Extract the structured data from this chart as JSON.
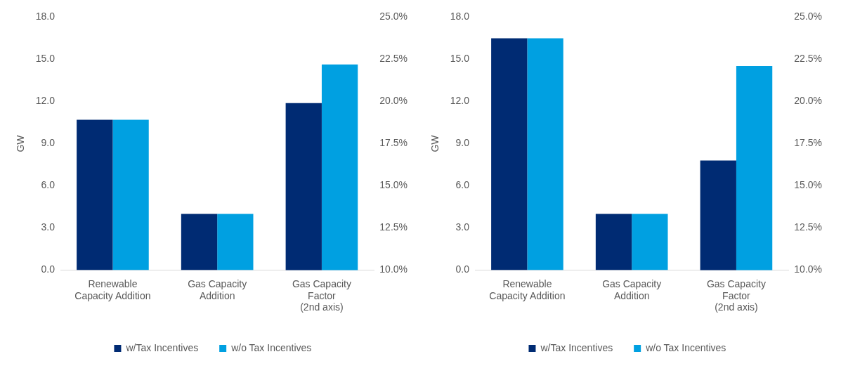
{
  "chart_data": [
    {
      "type": "bar",
      "categories": [
        "Renewable\nCapacity Addition",
        "Gas Capacity\nAddition",
        "Gas Capacity\nFactor\n(2nd axis)"
      ],
      "ylabel": "GW",
      "ylim": [
        0,
        18
      ],
      "yticks": [
        {
          "value": 0,
          "label": "0.0"
        },
        {
          "value": 3,
          "label": "3.0"
        },
        {
          "value": 6,
          "label": "6.0"
        },
        {
          "value": 9,
          "label": "9.0"
        },
        {
          "value": 12,
          "label": "12.0"
        },
        {
          "value": 15,
          "label": "15.0"
        },
        {
          "value": 18,
          "label": "18.0"
        }
      ],
      "y2lim": [
        10,
        25
      ],
      "y2ticks": [
        {
          "value": 10,
          "label": "10.0%"
        },
        {
          "value": 12.5,
          "label": "12.5%"
        },
        {
          "value": 15,
          "label": "15.0%"
        },
        {
          "value": 17.5,
          "label": "17.5%"
        },
        {
          "value": 20,
          "label": "20.0%"
        },
        {
          "value": 22.5,
          "label": "22.5%"
        },
        {
          "value": 25,
          "label": "25.0%"
        }
      ],
      "grid": false,
      "legend": "bottom",
      "series": [
        {
          "name": "w/Tax Incentives",
          "color": "#002b73",
          "values": [
            10.7,
            4.0,
            null
          ]
        },
        {
          "name": "w/o Tax Incentives",
          "color": "#00a0e1",
          "values": [
            10.7,
            4.0,
            null
          ]
        },
        {
          "color": "#002b73",
          "values": [
            null,
            null,
            19.9
          ],
          "axis": "y2"
        },
        {
          "color": "#00a0e1",
          "values": [
            null,
            null,
            22.2
          ],
          "axis": "y2"
        }
      ]
    },
    {
      "type": "bar",
      "categories": [
        "Renewable\nCapacity Addition",
        "Gas Capacity\nAddition",
        "Gas Capacity\nFactor\n(2nd axis)"
      ],
      "ylabel": "GW",
      "ylim": [
        0,
        18
      ],
      "yticks": [
        {
          "value": 0,
          "label": "0.0"
        },
        {
          "value": 3,
          "label": "3.0"
        },
        {
          "value": 6,
          "label": "6.0"
        },
        {
          "value": 9,
          "label": "9.0"
        },
        {
          "value": 12,
          "label": "12.0"
        },
        {
          "value": 15,
          "label": "15.0"
        },
        {
          "value": 18,
          "label": "18.0"
        }
      ],
      "y2lim": [
        10,
        25
      ],
      "y2ticks": [
        {
          "value": 10,
          "label": "10.0%"
        },
        {
          "value": 12.5,
          "label": "12.5%"
        },
        {
          "value": 15,
          "label": "15.0%"
        },
        {
          "value": 17.5,
          "label": "17.5%"
        },
        {
          "value": 20,
          "label": "20.0%"
        },
        {
          "value": 22.5,
          "label": "22.5%"
        },
        {
          "value": 25,
          "label": "25.0%"
        }
      ],
      "grid": false,
      "legend": "bottom",
      "series": [
        {
          "name": "w/Tax Incentives",
          "color": "#002b73",
          "values": [
            16.5,
            4.0,
            null
          ]
        },
        {
          "name": "w/o Tax Incentives",
          "color": "#00a0e1",
          "values": [
            16.5,
            4.0,
            null
          ]
        },
        {
          "color": "#002b73",
          "values": [
            null,
            null,
            16.5
          ],
          "axis": "y2"
        },
        {
          "color": "#00a0e1",
          "values": [
            null,
            null,
            22.1
          ],
          "axis": "y2"
        }
      ]
    }
  ]
}
